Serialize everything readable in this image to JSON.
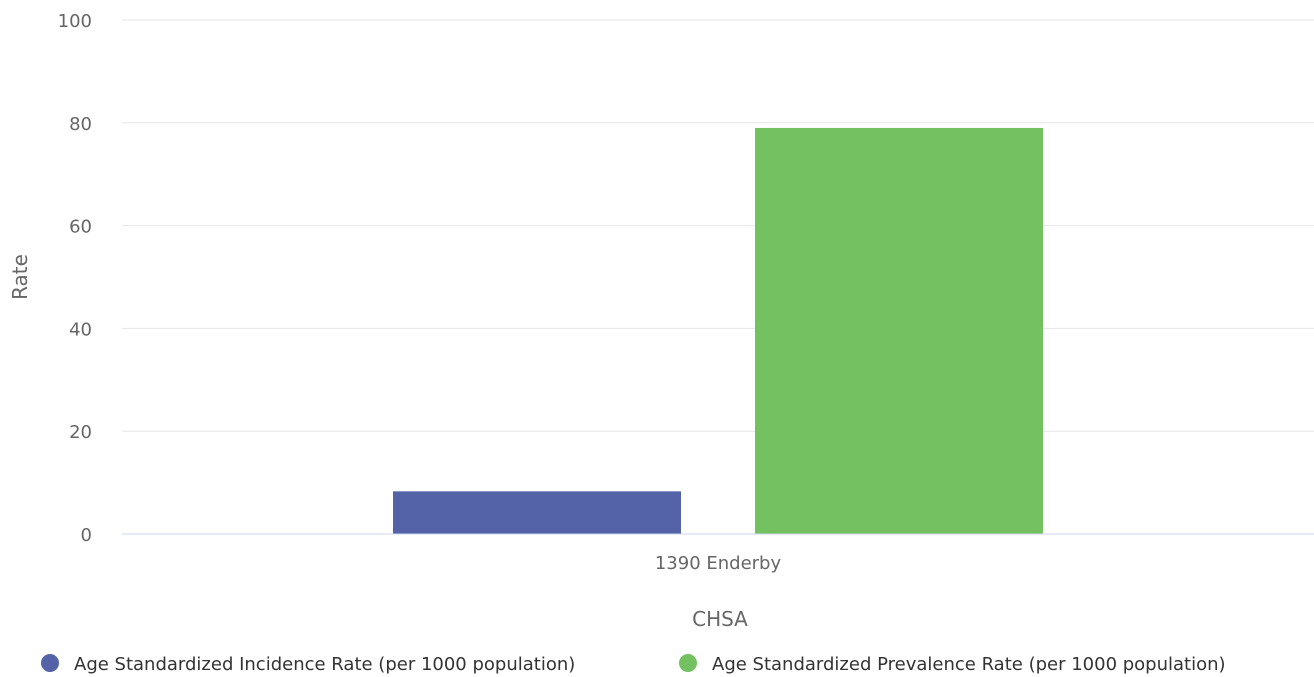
{
  "chart_data": {
    "type": "bar",
    "categories": [
      "1390 Enderby"
    ],
    "series": [
      {
        "name": "Age Standardized Incidence Rate (per 1000 population)",
        "values": [
          8.3
        ],
        "color": "#5463a8"
      },
      {
        "name": "Age Standardized Prevalence Rate (per 1000 population)",
        "values": [
          79
        ],
        "color": "#74c162"
      }
    ],
    "xlabel": "CHSA",
    "ylabel": "Rate",
    "ylim": [
      0,
      100
    ],
    "yticks": [
      0,
      20,
      40,
      60,
      80,
      100
    ],
    "grid": true,
    "legend": "bottom"
  }
}
